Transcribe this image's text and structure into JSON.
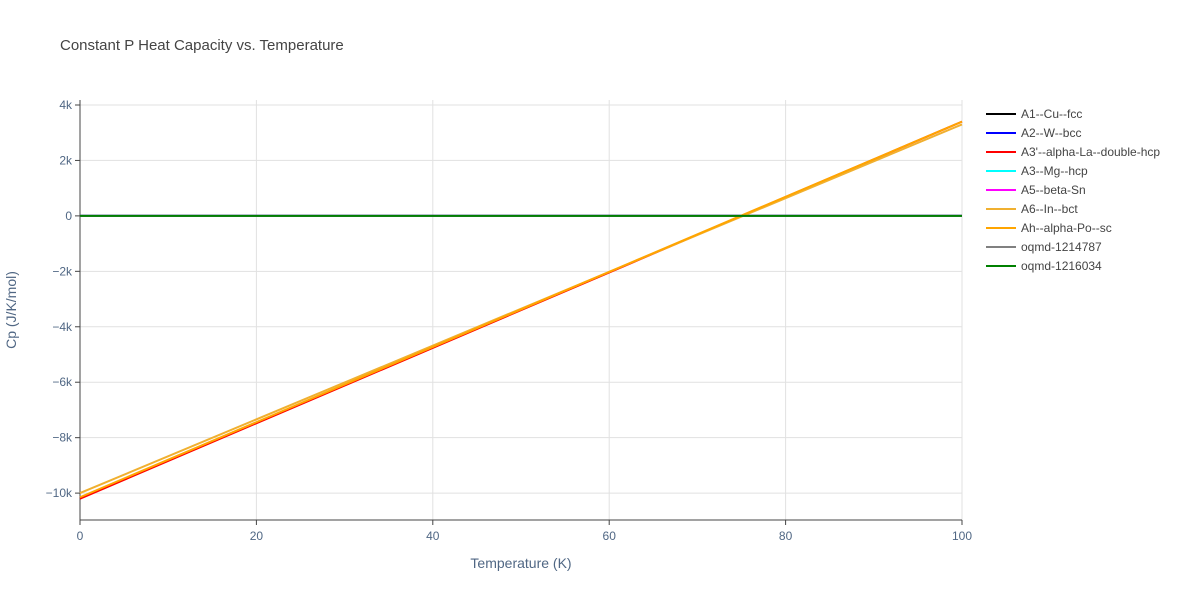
{
  "chart_data": {
    "type": "line",
    "title": "Constant P Heat Capacity vs. Temperature",
    "x_label": "Temperature (K)",
    "y_label": "Cp (J/K/mol)",
    "x": [
      0,
      100
    ],
    "series": [
      {
        "name": "A1--Cu--fcc",
        "color": "#000000",
        "values": [
          0,
          0
        ]
      },
      {
        "name": "A2--W--bcc",
        "color": "#0000ff",
        "values": [
          0,
          0
        ]
      },
      {
        "name": "A3'--alpha-La--double-hcp",
        "color": "#ff0000",
        "values": [
          -10200,
          3400
        ]
      },
      {
        "name": "A3--Mg--hcp",
        "color": "#00ffff",
        "values": [
          0,
          0
        ]
      },
      {
        "name": "A5--beta-Sn",
        "color": "#ff00ff",
        "values": [
          0,
          0
        ]
      },
      {
        "name": "A6--In--bct",
        "color": "#f0b030",
        "values": [
          -10000,
          3300
        ]
      },
      {
        "name": "Ah--alpha-Po--sc",
        "color": "#ffa500",
        "values": [
          -10150,
          3400
        ]
      },
      {
        "name": "oqmd-1214787",
        "color": "#808080",
        "values": [
          0,
          0
        ]
      },
      {
        "name": "oqmd-1216034",
        "color": "#008000",
        "values": [
          0,
          0
        ]
      }
    ],
    "xlim": [
      0,
      100
    ],
    "xticks": [
      0,
      20,
      40,
      60,
      80,
      100
    ],
    "ylim": [
      -10970,
      4180
    ],
    "yticks": [
      {
        "value": 4000,
        "label": "4k"
      },
      {
        "value": 2000,
        "label": "2k"
      },
      0,
      {
        "value": -2000,
        "label": "−2k"
      },
      {
        "value": -4000,
        "label": "−4k"
      },
      {
        "value": -6000,
        "label": "−6k"
      },
      {
        "value": -8000,
        "label": "−8k"
      },
      {
        "value": -10000,
        "label": "−10k"
      }
    ],
    "grid": true
  }
}
